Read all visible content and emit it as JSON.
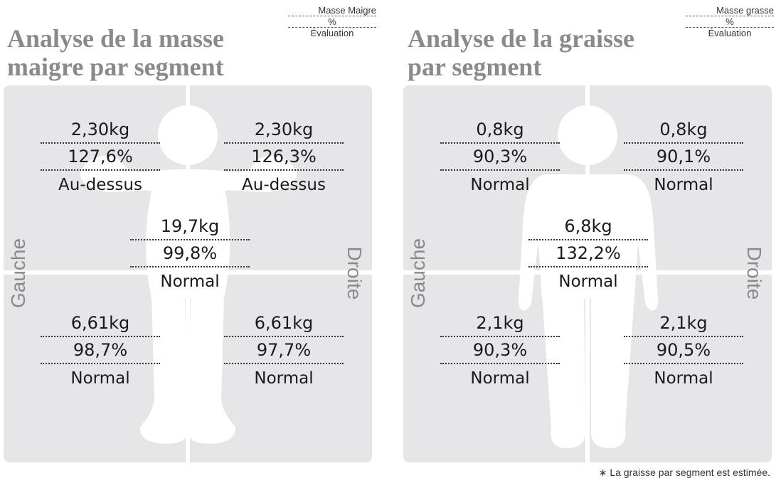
{
  "lean": {
    "title_line1": "Analyse de la masse",
    "title_line2": "maigre par segment",
    "legend": {
      "top": "Masse Maigre",
      "middle": "%",
      "bottom": "Évaluation"
    },
    "left_label": "Gauche",
    "right_label": "Droite",
    "left_arm": {
      "mass": "2,30kg",
      "percent": "127,6%",
      "eval": "Au-dessus"
    },
    "right_arm": {
      "mass": "2,30kg",
      "percent": "126,3%",
      "eval": "Au-dessus"
    },
    "trunk": {
      "mass": "19,7kg",
      "percent": "99,8%",
      "eval": "Normal"
    },
    "left_leg": {
      "mass": "6,61kg",
      "percent": "98,7%",
      "eval": "Normal"
    },
    "right_leg": {
      "mass": "6,61kg",
      "percent": "97,7%",
      "eval": "Normal"
    }
  },
  "fat": {
    "title_line1": "Analyse de la graisse",
    "title_line2": "par segment",
    "legend": {
      "top": "Masse grasse",
      "middle": "%",
      "bottom": "Évaluation"
    },
    "left_label": "Gauche",
    "right_label": "Droite",
    "left_arm": {
      "mass": "0,8kg",
      "percent": "90,3%",
      "eval": "Normal"
    },
    "right_arm": {
      "mass": "0,8kg",
      "percent": "90,1%",
      "eval": "Normal"
    },
    "trunk": {
      "mass": "6,8kg",
      "percent": "132,2%",
      "eval": "Normal"
    },
    "left_leg": {
      "mass": "2,1kg",
      "percent": "90,3%",
      "eval": "Normal"
    },
    "right_leg": {
      "mass": "2,1kg",
      "percent": "90,5%",
      "eval": "Normal"
    }
  },
  "footnote": "∗ La graisse par segment est estimée."
}
